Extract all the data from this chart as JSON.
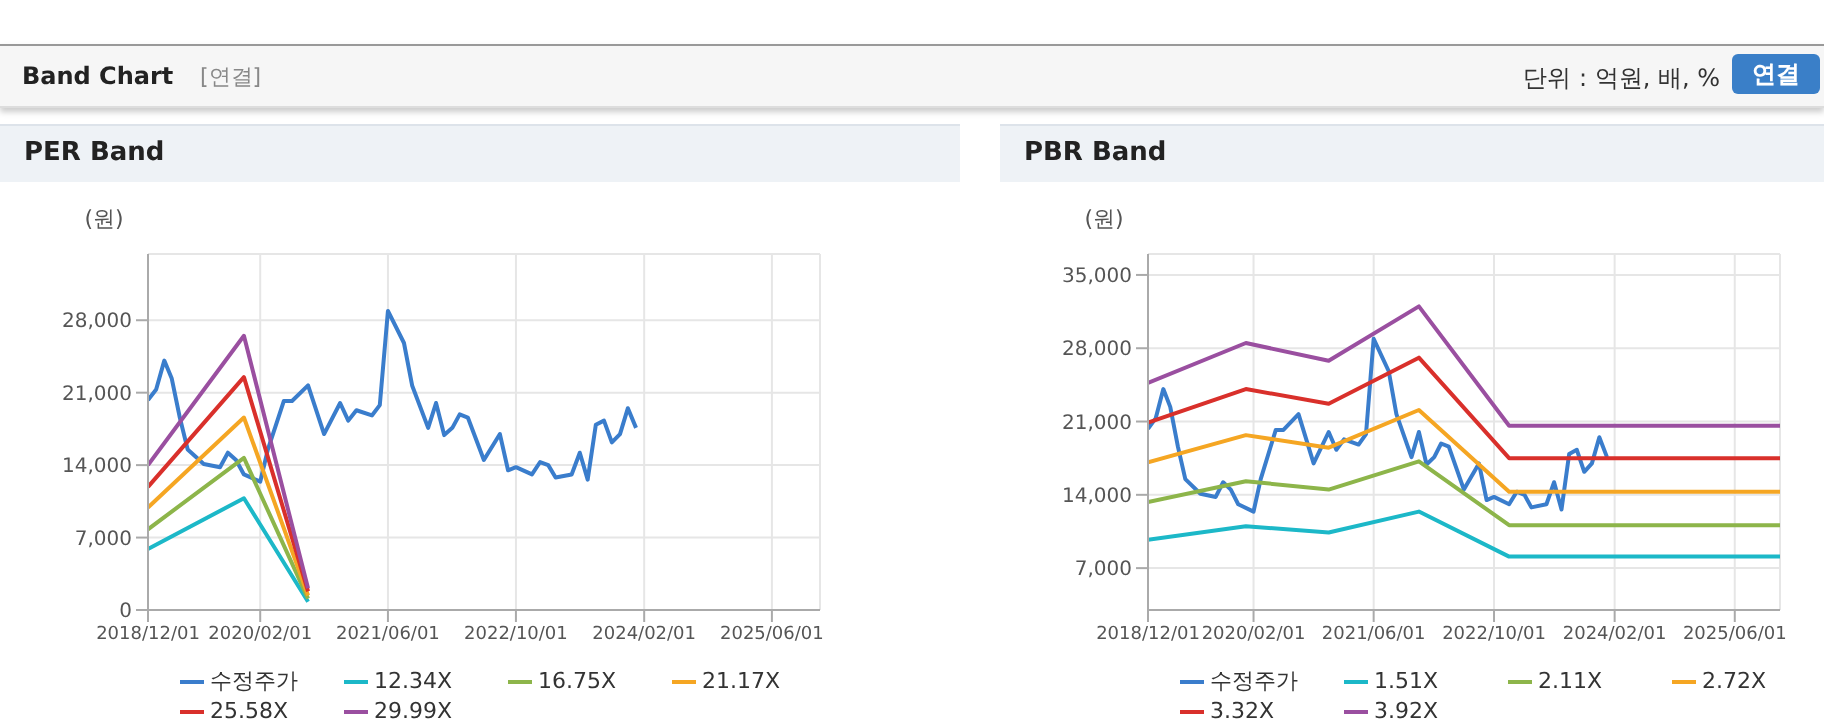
{
  "chart_data": [
    {
      "type": "line",
      "title": "PER Band",
      "ylabel": "(원)",
      "annotations": [
        "Band Chart",
        "[연결]",
        "단위 : 억원, 배, %",
        "연결"
      ],
      "xlim": [
        "2018-12-01",
        "2025-12-01"
      ],
      "xticks": [
        {
          "value": "2018-12-01",
          "label": "2018/12/01"
        },
        {
          "value": "2020-02-01",
          "label": "2020/02/01"
        },
        {
          "value": "2021-06-01",
          "label": "2021/06/01"
        },
        {
          "value": "2022-10-01",
          "label": "2022/10/01"
        },
        {
          "value": "2024-02-01",
          "label": "2024/02/01"
        },
        {
          "value": "2025-06-01",
          "label": "2025/06/01"
        }
      ],
      "ylim": [
        0,
        34400
      ],
      "yticks": [
        {
          "value": 0,
          "label": "0"
        },
        {
          "value": 7000,
          "label": "7,000"
        },
        {
          "value": 14000,
          "label": "14,000"
        },
        {
          "value": 21000,
          "label": "21,000"
        },
        {
          "value": 28000,
          "label": "28,000"
        }
      ],
      "grid": true,
      "legend": "bottom",
      "marker": "none",
      "series": [
        {
          "name": "수정주가",
          "color": "#3a7dcc",
          "x": [
            "2018-12",
            "2019-01",
            "2019-02",
            "2019-03",
            "2019-04",
            "2019-05",
            "2019-07",
            "2019-09",
            "2019-10",
            "2019-11",
            "2019-12",
            "2020-02",
            "2020-03",
            "2020-05",
            "2020-06",
            "2020-08",
            "2020-10",
            "2020-12",
            "2021-01",
            "2021-02",
            "2021-04",
            "2021-05",
            "2021-06",
            "2021-08",
            "2021-09",
            "2021-11",
            "2021-12",
            "2022-01",
            "2022-02",
            "2022-03",
            "2022-04",
            "2022-06",
            "2022-08",
            "2022-09",
            "2022-10",
            "2022-12",
            "2023-01",
            "2023-02",
            "2023-03",
            "2023-05",
            "2023-06",
            "2023-07",
            "2023-08",
            "2023-09",
            "2023-10",
            "2023-11",
            "2023-12",
            "2024-01"
          ],
          "values": [
            20300,
            21300,
            24100,
            22400,
            18600,
            15500,
            14100,
            13800,
            15200,
            14500,
            13100,
            12400,
            15500,
            20200,
            20200,
            21700,
            17000,
            20000,
            18300,
            19300,
            18800,
            19800,
            28900,
            25800,
            21700,
            17600,
            20000,
            16900,
            17600,
            18900,
            18600,
            14500,
            17000,
            13500,
            13800,
            13100,
            14300,
            14000,
            12800,
            13100,
            15200,
            12600,
            17900,
            18300,
            16200,
            17000,
            19500,
            17600
          ]
        },
        {
          "name": "12.34X",
          "color": "#1cb8c8",
          "x": [
            "2018-12",
            "2019-12",
            "2020-08"
          ],
          "values": [
            5900,
            10800,
            800
          ]
        },
        {
          "name": "16.75X",
          "color": "#8db54a",
          "x": [
            "2018-12",
            "2019-12",
            "2020-08"
          ],
          "values": [
            7800,
            14700,
            1100
          ]
        },
        {
          "name": "21.17X",
          "color": "#f5a623",
          "x": [
            "2018-12",
            "2019-12",
            "2020-08"
          ],
          "values": [
            9900,
            18600,
            1400
          ]
        },
        {
          "name": "25.58X",
          "color": "#d9302b",
          "x": [
            "2018-12",
            "2019-12",
            "2020-08"
          ],
          "values": [
            11900,
            22500,
            1800
          ]
        },
        {
          "name": "29.99X",
          "color": "#9a4fa0",
          "x": [
            "2018-12",
            "2019-12",
            "2020-08"
          ],
          "values": [
            14000,
            26500,
            2100
          ]
        }
      ]
    },
    {
      "type": "line",
      "title": "PBR Band",
      "ylabel": "(원)",
      "xlim": [
        "2018-12-01",
        "2025-12-01"
      ],
      "xticks": [
        {
          "value": "2018-12-01",
          "label": "2018/12/01"
        },
        {
          "value": "2020-02-01",
          "label": "2020/02/01"
        },
        {
          "value": "2021-06-01",
          "label": "2021/06/01"
        },
        {
          "value": "2022-10-01",
          "label": "2022/10/01"
        },
        {
          "value": "2024-02-01",
          "label": "2024/02/01"
        },
        {
          "value": "2025-06-01",
          "label": "2025/06/01"
        }
      ],
      "ylim": [
        3000,
        37000
      ],
      "yticks": [
        {
          "value": 7000,
          "label": "7,000"
        },
        {
          "value": 14000,
          "label": "14,000"
        },
        {
          "value": 21000,
          "label": "21,000"
        },
        {
          "value": 28000,
          "label": "28,000"
        },
        {
          "value": 35000,
          "label": "35,000"
        }
      ],
      "grid": true,
      "legend": "bottom",
      "marker": "none",
      "series": [
        {
          "name": "수정주가",
          "color": "#3a7dcc",
          "x": [
            "2018-12",
            "2019-01",
            "2019-02",
            "2019-03",
            "2019-04",
            "2019-05",
            "2019-07",
            "2019-09",
            "2019-10",
            "2019-11",
            "2019-12",
            "2020-02",
            "2020-03",
            "2020-05",
            "2020-06",
            "2020-08",
            "2020-10",
            "2020-12",
            "2021-01",
            "2021-02",
            "2021-04",
            "2021-05",
            "2021-06",
            "2021-08",
            "2021-09",
            "2021-11",
            "2021-12",
            "2022-01",
            "2022-02",
            "2022-03",
            "2022-04",
            "2022-06",
            "2022-08",
            "2022-09",
            "2022-10",
            "2022-12",
            "2023-01",
            "2023-02",
            "2023-03",
            "2023-05",
            "2023-06",
            "2023-07",
            "2023-08",
            "2023-09",
            "2023-10",
            "2023-11",
            "2023-12",
            "2024-01"
          ],
          "values": [
            20300,
            21300,
            24100,
            22400,
            18600,
            15500,
            14100,
            13800,
            15200,
            14500,
            13100,
            12400,
            15500,
            20200,
            20200,
            21700,
            17000,
            20000,
            18300,
            19300,
            18800,
            19800,
            28900,
            25800,
            21700,
            17600,
            20000,
            16900,
            17600,
            18900,
            18600,
            14500,
            17000,
            13500,
            13800,
            13100,
            14300,
            14000,
            12800,
            13100,
            15200,
            12600,
            17900,
            18300,
            16200,
            17000,
            19500,
            17600
          ]
        },
        {
          "name": "1.51X",
          "color": "#1cb8c8",
          "x": [
            "2018-12",
            "2020-01",
            "2020-12",
            "2021-12",
            "2022-12",
            "2025-12"
          ],
          "values": [
            9700,
            11000,
            10400,
            12400,
            8100,
            8100
          ]
        },
        {
          "name": "2.11X",
          "color": "#8db54a",
          "x": [
            "2018-12",
            "2020-01",
            "2020-12",
            "2021-12",
            "2022-12",
            "2025-12"
          ],
          "values": [
            13300,
            15300,
            14500,
            17200,
            11100,
            11100
          ]
        },
        {
          "name": "2.72X",
          "color": "#f5a623",
          "x": [
            "2018-12",
            "2020-01",
            "2020-12",
            "2021-12",
            "2022-12",
            "2025-12"
          ],
          "values": [
            17100,
            19700,
            18500,
            22100,
            14300,
            14300
          ]
        },
        {
          "name": "3.32X",
          "color": "#d9302b",
          "x": [
            "2018-12",
            "2020-01",
            "2020-12",
            "2021-12",
            "2022-12",
            "2025-12"
          ],
          "values": [
            20900,
            24100,
            22700,
            27100,
            17500,
            17500
          ]
        },
        {
          "name": "3.92X",
          "color": "#9a4fa0",
          "x": [
            "2018-12",
            "2020-01",
            "2020-12",
            "2021-12",
            "2022-12",
            "2025-12"
          ],
          "values": [
            24700,
            28500,
            26800,
            32000,
            20600,
            20600
          ]
        }
      ]
    }
  ]
}
